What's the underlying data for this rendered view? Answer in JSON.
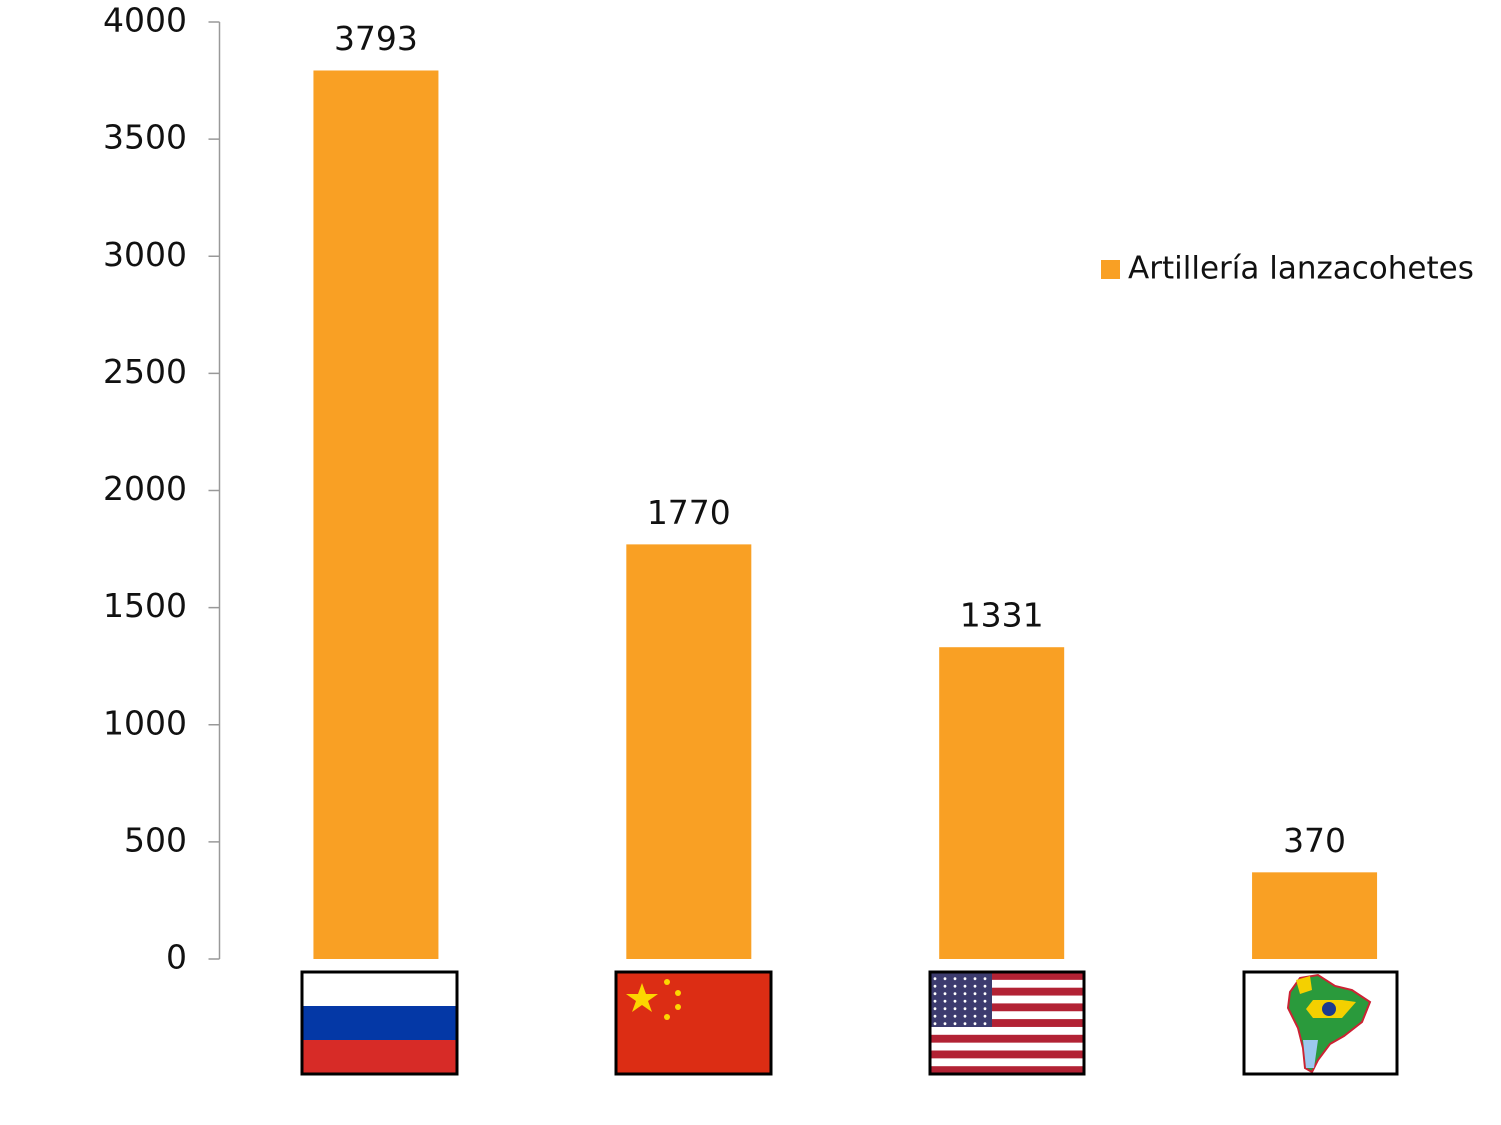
{
  "chart_data": {
    "type": "bar",
    "categories": [
      null,
      null,
      null,
      null
    ],
    "series": [
      {
        "name": "Artillería lanzacohetes",
        "color": "#f9a024",
        "values": [
          3793,
          1770,
          1331,
          370
        ]
      }
    ],
    "ylim": [
      0,
      4000
    ],
    "yticks": [
      0,
      500,
      1000,
      1500,
      2000,
      2500,
      3000,
      3500,
      4000
    ],
    "grid": false,
    "legend": "right"
  }
}
